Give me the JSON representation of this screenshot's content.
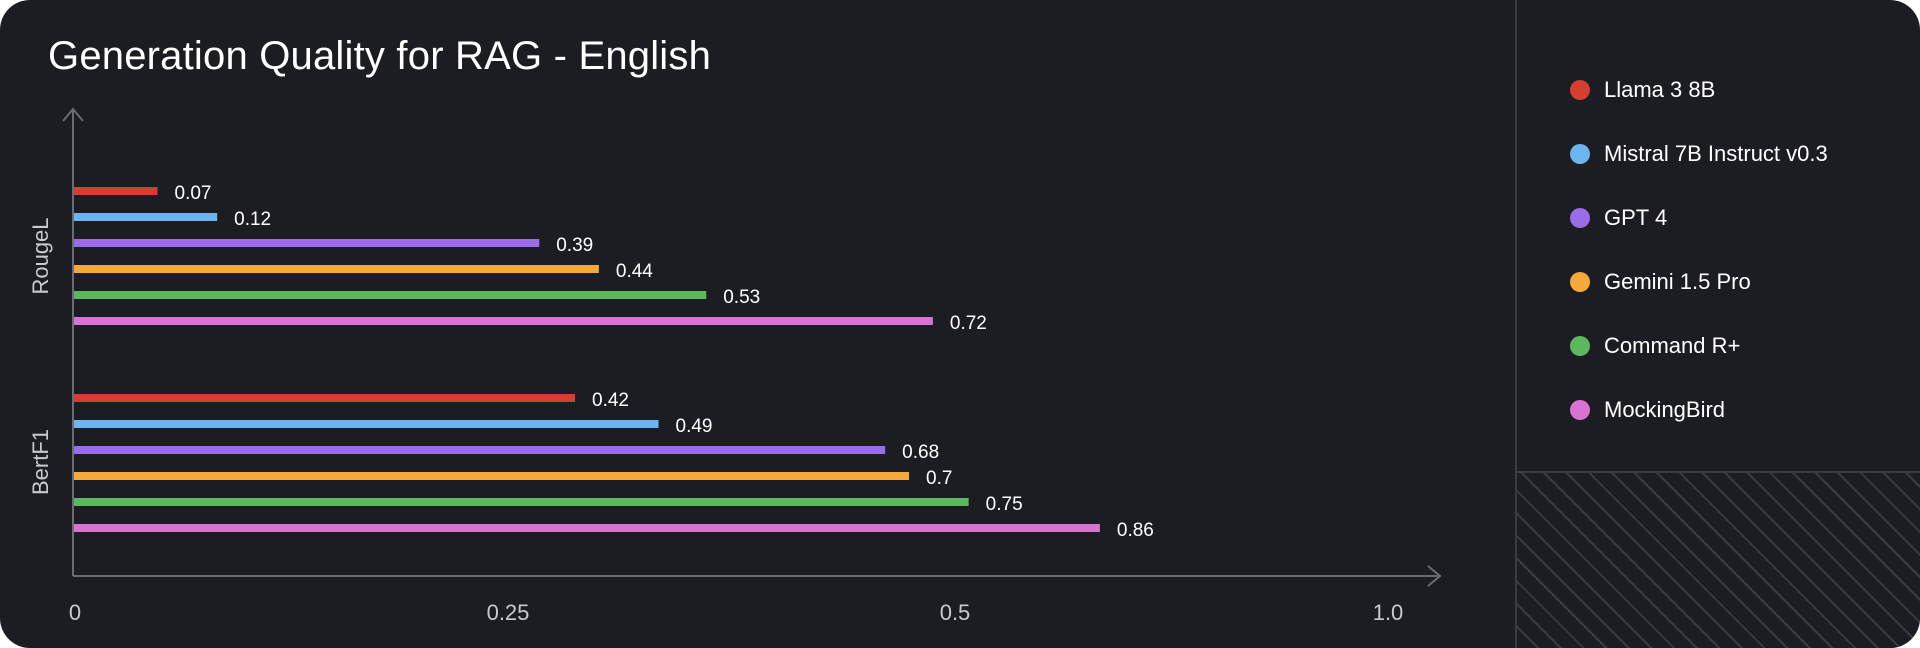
{
  "chart_data": {
    "type": "bar",
    "orientation": "horizontal",
    "title": "Generation Quality for RAG - English",
    "categories": [
      "RougeL",
      "BertF1"
    ],
    "x_ticks": [
      0,
      0.25,
      0.5,
      1.0
    ],
    "x_tick_labels": [
      "0",
      "0.25",
      "0.5",
      "1.0"
    ],
    "xlim": [
      0,
      1.0
    ],
    "grid": false,
    "legend_position": "right",
    "series": [
      {
        "name": "Llama 3 8B",
        "color": "#d43f32",
        "values": [
          0.07,
          0.42
        ]
      },
      {
        "name": "Mistral 7B Instruct v0.3",
        "color": "#6eb4ef",
        "values": [
          0.12,
          0.49
        ]
      },
      {
        "name": "GPT 4",
        "color": "#9a6ce8",
        "values": [
          0.39,
          0.68
        ]
      },
      {
        "name": "Gemini 1.5 Pro",
        "color": "#f6a93b",
        "values": [
          0.44,
          0.7
        ]
      },
      {
        "name": "Command R+",
        "color": "#5cb85c",
        "values": [
          0.53,
          0.75
        ]
      },
      {
        "name": "MockingBird",
        "color": "#d873d4",
        "values": [
          0.72,
          0.86
        ]
      }
    ]
  }
}
